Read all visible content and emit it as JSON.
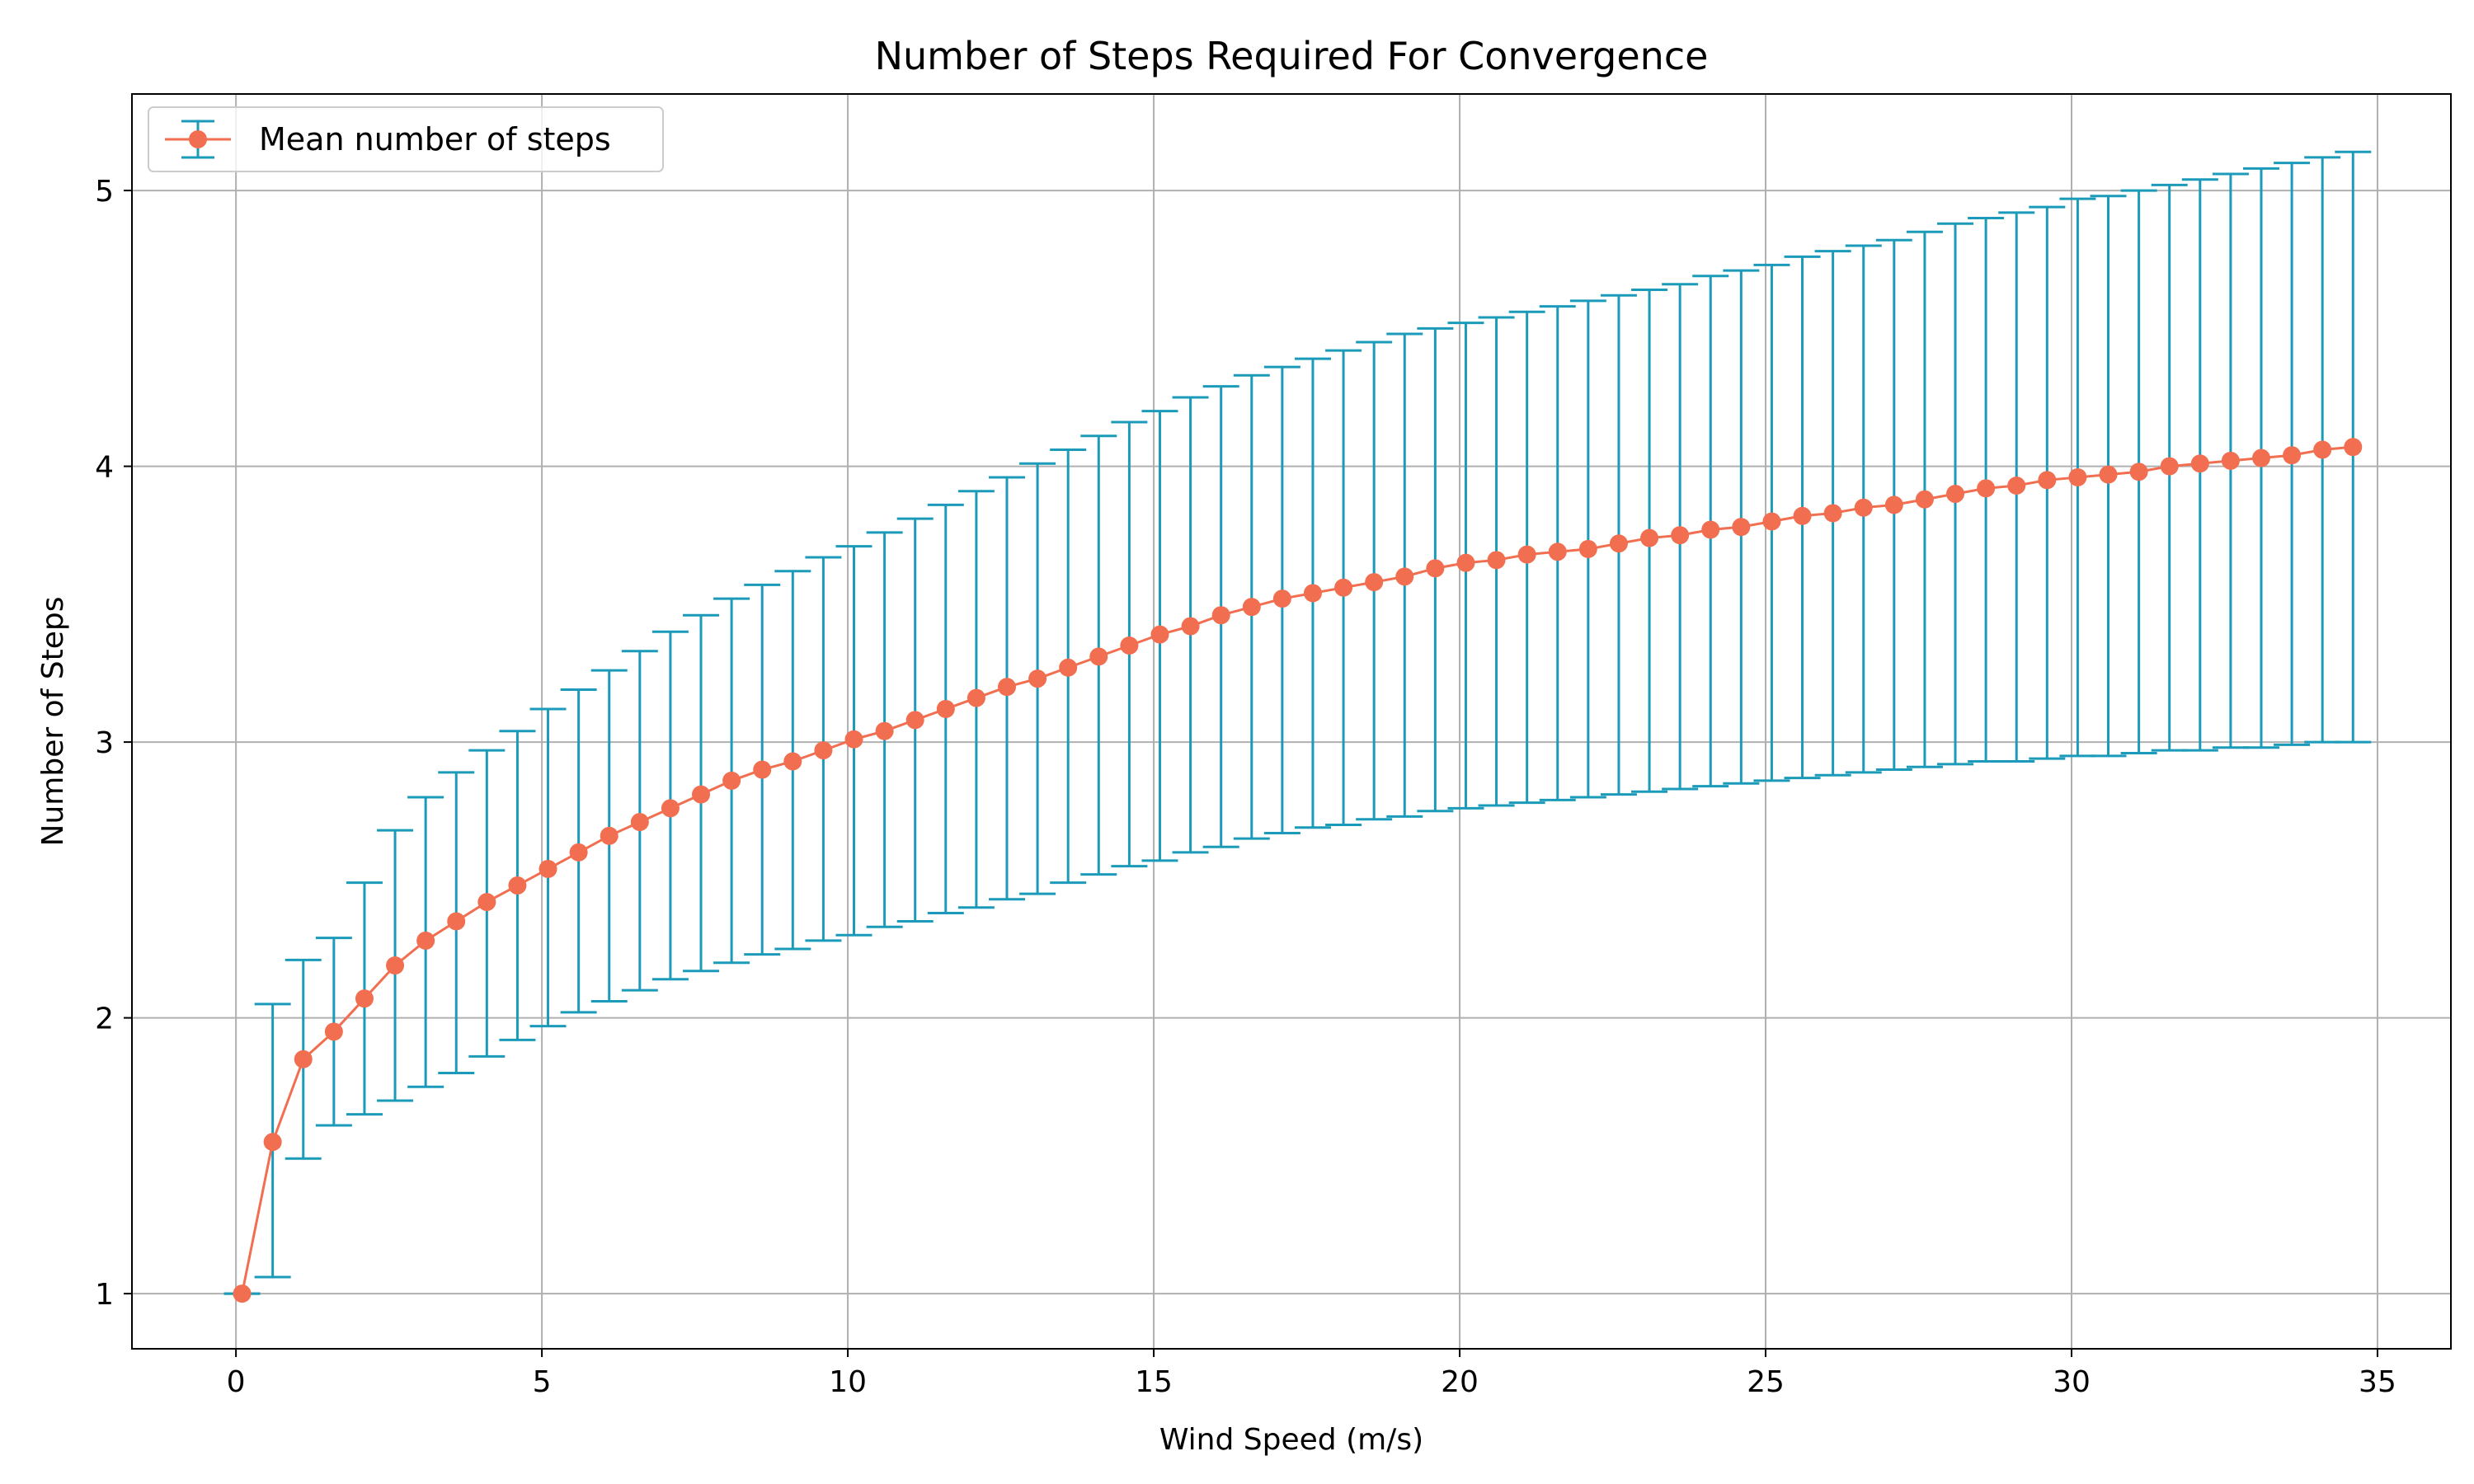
{
  "chart_data": {
    "type": "line",
    "title": "Number of Steps Required For Convergence",
    "xlabel": "Wind Speed (m/s)",
    "ylabel": "Number of Steps",
    "xlim": [
      -1.7,
      36.2
    ],
    "ylim": [
      0.8,
      5.35
    ],
    "xticks": [
      0,
      5,
      10,
      15,
      20,
      25,
      30,
      35
    ],
    "yticks": [
      1,
      2,
      3,
      4,
      5
    ],
    "grid": true,
    "legend_position": "top-left",
    "series": [
      {
        "name": "Mean number of steps",
        "color": "#f26e50",
        "errorbar_color": "#1b9bb9",
        "x": [
          0.1,
          0.6,
          1.1,
          1.6,
          2.1,
          2.6,
          3.1,
          3.6,
          4.1,
          4.6,
          5.1,
          5.6,
          6.1,
          6.6,
          7.1,
          7.6,
          8.1,
          8.6,
          9.1,
          9.6,
          10.1,
          10.6,
          11.1,
          11.6,
          12.1,
          12.6,
          13.1,
          13.6,
          14.1,
          14.6,
          15.1,
          15.6,
          16.1,
          16.6,
          17.1,
          17.6,
          18.1,
          18.6,
          19.1,
          19.6,
          20.1,
          20.6,
          21.1,
          21.6,
          22.1,
          22.6,
          23.1,
          23.6,
          24.1,
          24.6,
          25.1,
          25.6,
          26.1,
          26.6,
          27.1,
          27.6,
          28.1,
          28.6,
          29.1,
          29.6,
          30.1,
          30.6,
          31.1,
          31.6,
          32.1,
          32.6,
          33.1,
          33.6,
          34.1,
          34.6
        ],
        "y": [
          1.0,
          1.55,
          1.85,
          1.95,
          2.07,
          2.19,
          2.28,
          2.35,
          2.42,
          2.48,
          2.54,
          2.6,
          2.66,
          2.71,
          2.76,
          2.81,
          2.86,
          2.9,
          2.93,
          2.97,
          3.01,
          3.04,
          3.08,
          3.12,
          3.16,
          3.2,
          3.23,
          3.27,
          3.31,
          3.35,
          3.39,
          3.42,
          3.46,
          3.49,
          3.52,
          3.54,
          3.56,
          3.58,
          3.6,
          3.63,
          3.65,
          3.66,
          3.68,
          3.69,
          3.7,
          3.72,
          3.74,
          3.75,
          3.77,
          3.78,
          3.8,
          3.82,
          3.83,
          3.85,
          3.86,
          3.88,
          3.9,
          3.92,
          3.93,
          3.95,
          3.96,
          3.97,
          3.98,
          4.0,
          4.01,
          4.02,
          4.03,
          4.04,
          4.06,
          4.07
        ],
        "yerr_lower": [
          1.0,
          1.06,
          1.49,
          1.61,
          1.65,
          1.7,
          1.75,
          1.8,
          1.86,
          1.92,
          1.97,
          2.02,
          2.06,
          2.1,
          2.14,
          2.17,
          2.2,
          2.23,
          2.25,
          2.28,
          2.3,
          2.33,
          2.35,
          2.38,
          2.4,
          2.43,
          2.45,
          2.49,
          2.52,
          2.55,
          2.57,
          2.6,
          2.62,
          2.65,
          2.67,
          2.69,
          2.7,
          2.72,
          2.73,
          2.75,
          2.76,
          2.77,
          2.78,
          2.79,
          2.8,
          2.81,
          2.82,
          2.83,
          2.84,
          2.85,
          2.86,
          2.87,
          2.88,
          2.89,
          2.9,
          2.91,
          2.92,
          2.93,
          2.93,
          2.94,
          2.95,
          2.95,
          2.96,
          2.97,
          2.97,
          2.98,
          2.98,
          2.99,
          3.0,
          3.0
        ],
        "yerr_upper": [
          1.0,
          2.05,
          2.21,
          2.29,
          2.49,
          2.68,
          2.8,
          2.89,
          2.97,
          3.04,
          3.12,
          3.19,
          3.26,
          3.33,
          3.4,
          3.46,
          3.52,
          3.57,
          3.62,
          3.67,
          3.71,
          3.76,
          3.81,
          3.86,
          3.91,
          3.96,
          4.01,
          4.06,
          4.11,
          4.16,
          4.2,
          4.25,
          4.29,
          4.33,
          4.36,
          4.39,
          4.42,
          4.45,
          4.48,
          4.5,
          4.52,
          4.54,
          4.56,
          4.58,
          4.6,
          4.62,
          4.64,
          4.66,
          4.69,
          4.71,
          4.73,
          4.76,
          4.78,
          4.8,
          4.82,
          4.85,
          4.88,
          4.9,
          4.92,
          4.94,
          4.97,
          4.98,
          5.0,
          5.02,
          5.04,
          5.06,
          5.08,
          5.1,
          5.12,
          5.14
        ]
      }
    ]
  }
}
